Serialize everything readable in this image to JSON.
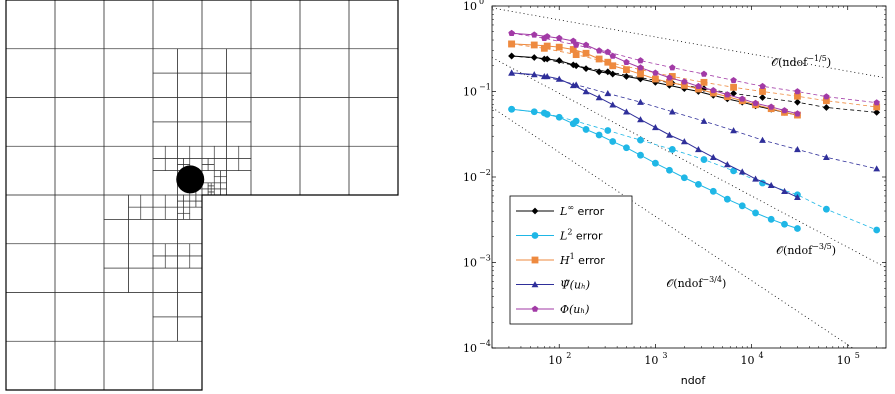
{
  "mesh_figure": {
    "description_label": "",
    "refinement_center": [
      0.95,
      0.62
    ],
    "levels": 7
  },
  "chart_data": {
    "type": "line",
    "xscale": "log",
    "yscale": "log",
    "xlim": [
      20,
      250000
    ],
    "ylim": [
      0.0001,
      1
    ],
    "xlabel": "ndof",
    "ylabel": "",
    "x_ticks": [
      {
        "value": 100,
        "label": "10",
        "exp": "2"
      },
      {
        "value": 1000,
        "label": "10",
        "exp": "3"
      },
      {
        "value": 10000,
        "label": "10",
        "exp": "4"
      },
      {
        "value": 100000,
        "label": "10",
        "exp": "5"
      }
    ],
    "y_ticks": [
      {
        "value": 1,
        "label": "10",
        "exp": "0"
      },
      {
        "value": 0.1,
        "label": "10",
        "exp": "−1"
      },
      {
        "value": 0.01,
        "label": "10",
        "exp": "−2"
      },
      {
        "value": 0.001,
        "label": "10",
        "exp": "−3"
      },
      {
        "value": 0.0001,
        "label": "10",
        "exp": "−4"
      }
    ],
    "legend_position": "bottom-left",
    "series": [
      {
        "name": "L∞ error",
        "name_main": "L",
        "name_sup": "∞",
        "name_rest": " error",
        "color": "#000000",
        "marker": "diamond",
        "solid": {
          "x": [
            32,
            55,
            75,
            100,
            140,
            190,
            260,
            360,
            500,
            700,
            1000,
            1400,
            2000,
            2800,
            4000,
            5600,
            8000,
            11000,
            16000,
            22000,
            30000
          ],
          "y": [
            0.26,
            0.25,
            0.24,
            0.23,
            0.205,
            0.185,
            0.17,
            0.16,
            0.15,
            0.14,
            0.128,
            0.118,
            0.108,
            0.1,
            0.09,
            0.082,
            0.075,
            0.068,
            0.062,
            0.057,
            0.053
          ]
        },
        "dashed": {
          "x": [
            32,
            70,
            150,
            320,
            700,
            1500,
            3200,
            6500,
            13000,
            30000,
            60000,
            200000
          ],
          "y": [
            0.26,
            0.24,
            0.2,
            0.17,
            0.145,
            0.125,
            0.108,
            0.095,
            0.085,
            0.075,
            0.065,
            0.057
          ]
        }
      },
      {
        "name": "L2 error",
        "name_main": "L",
        "name_sup": "2",
        "name_rest": " error",
        "color": "#1fb7e6",
        "marker": "circle",
        "solid": {
          "x": [
            32,
            55,
            75,
            100,
            140,
            190,
            260,
            360,
            500,
            700,
            1000,
            1400,
            2000,
            2800,
            4000,
            5600,
            8000,
            11000,
            16000,
            22000,
            30000
          ],
          "y": [
            0.062,
            0.058,
            0.054,
            0.05,
            0.042,
            0.036,
            0.031,
            0.026,
            0.022,
            0.018,
            0.0145,
            0.012,
            0.0098,
            0.0082,
            0.0068,
            0.0055,
            0.0046,
            0.0038,
            0.0032,
            0.0028,
            0.0025
          ]
        },
        "dashed": {
          "x": [
            32,
            70,
            150,
            320,
            700,
            1500,
            3200,
            6500,
            13000,
            30000,
            60000,
            200000
          ],
          "y": [
            0.062,
            0.056,
            0.045,
            0.035,
            0.027,
            0.021,
            0.016,
            0.0118,
            0.0085,
            0.0062,
            0.0042,
            0.0024
          ]
        }
      },
      {
        "name": "H1 error",
        "name_main": "H",
        "name_sup": "1",
        "name_rest": " error",
        "color": "#ee8a3f",
        "marker": "square",
        "solid": {
          "x": [
            32,
            55,
            75,
            100,
            140,
            190,
            260,
            360,
            500,
            700,
            1000,
            1400,
            2000,
            2800,
            4000,
            5600,
            8000,
            11000,
            16000,
            22000,
            30000
          ],
          "y": [
            0.36,
            0.35,
            0.34,
            0.33,
            0.31,
            0.28,
            0.24,
            0.2,
            0.18,
            0.16,
            0.14,
            0.128,
            0.118,
            0.107,
            0.096,
            0.087,
            0.078,
            0.07,
            0.063,
            0.057,
            0.053
          ]
        },
        "dashed": {
          "x": [
            32,
            70,
            150,
            320,
            700,
            1500,
            3200,
            6500,
            13000,
            30000,
            60000,
            200000
          ],
          "y": [
            0.36,
            0.32,
            0.27,
            0.22,
            0.18,
            0.15,
            0.128,
            0.112,
            0.1,
            0.088,
            0.078,
            0.066
          ]
        }
      },
      {
        "name": "Ψ̃(u_h)",
        "name_main": "Ψ̃(uₕ)",
        "name_sup": "",
        "name_rest": "",
        "color": "#2f2f9a",
        "marker": "triangle",
        "solid": {
          "x": [
            32,
            55,
            75,
            100,
            140,
            190,
            260,
            360,
            500,
            700,
            1000,
            1400,
            2000,
            2800,
            4000,
            5600,
            8000,
            11000,
            16000,
            22000,
            30000
          ],
          "y": [
            0.165,
            0.158,
            0.15,
            0.14,
            0.118,
            0.1,
            0.085,
            0.07,
            0.058,
            0.047,
            0.038,
            0.031,
            0.026,
            0.021,
            0.017,
            0.014,
            0.0115,
            0.0095,
            0.008,
            0.0068,
            0.0058
          ]
        },
        "dashed": {
          "x": [
            32,
            70,
            150,
            320,
            700,
            1500,
            3200,
            6500,
            13000,
            30000,
            60000,
            200000
          ],
          "y": [
            0.165,
            0.15,
            0.12,
            0.095,
            0.075,
            0.058,
            0.045,
            0.035,
            0.027,
            0.021,
            0.017,
            0.0125
          ]
        }
      },
      {
        "name": "Φ(u_h)",
        "name_main": "Φ(uₕ)",
        "name_sup": "",
        "name_rest": "",
        "color": "#a23aa6",
        "marker": "pentagon",
        "solid": {
          "x": [
            32,
            55,
            75,
            100,
            140,
            190,
            260,
            360,
            500,
            700,
            1000,
            1400,
            2000,
            2800,
            4000,
            5600,
            8000,
            11000,
            16000,
            22000,
            30000
          ],
          "y": [
            0.48,
            0.46,
            0.44,
            0.42,
            0.39,
            0.35,
            0.3,
            0.26,
            0.22,
            0.19,
            0.165,
            0.145,
            0.13,
            0.115,
            0.103,
            0.092,
            0.082,
            0.073,
            0.066,
            0.06,
            0.055
          ]
        },
        "dashed": {
          "x": [
            32,
            70,
            150,
            320,
            700,
            1500,
            3200,
            6500,
            13000,
            30000,
            60000,
            200000
          ],
          "y": [
            0.48,
            0.42,
            0.35,
            0.29,
            0.23,
            0.19,
            0.16,
            0.135,
            0.115,
            0.1,
            0.087,
            0.074
          ]
        }
      }
    ],
    "reference_lines": [
      {
        "label_main": "𝒪(ndof",
        "label_exp": "−1/5",
        "label_tail": ")",
        "slope": -0.2,
        "x0": 20,
        "y0": 0.95,
        "label_x": 16000,
        "label_y": 0.2
      },
      {
        "label_main": "𝒪(ndof",
        "label_exp": "−3/5",
        "label_tail": ")",
        "slope": -0.6,
        "x0": 20,
        "y0": 0.25,
        "label_x": 18000,
        "label_y": 0.00125
      },
      {
        "label_main": "𝒪(ndof",
        "label_exp": "−3/4",
        "label_tail": ")",
        "slope": -0.75,
        "x0": 20,
        "y0": 0.065,
        "label_x": 1300,
        "label_y": 0.00052
      }
    ]
  }
}
